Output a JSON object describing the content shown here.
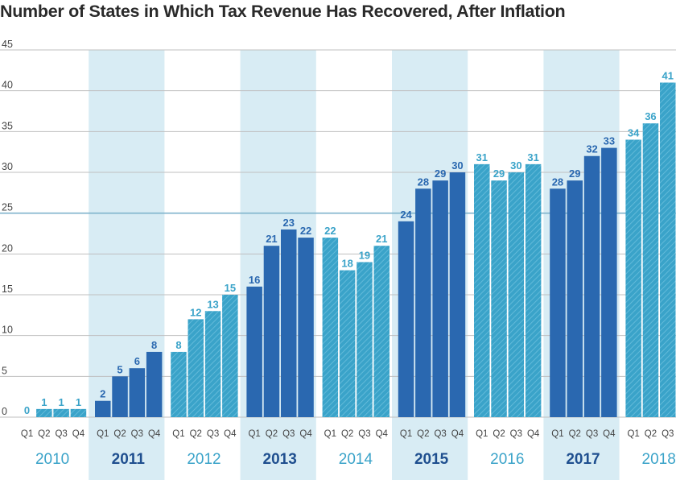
{
  "chart_data": {
    "type": "bar",
    "title": "Number of States in Which Tax Revenue Has Recovered, After Inflation",
    "xlabel": "",
    "ylabel": "",
    "ylim": [
      0,
      45
    ],
    "yticks": [
      0,
      5,
      10,
      15,
      20,
      25,
      30,
      35,
      40,
      45
    ],
    "grid": true,
    "highlight_gridline": 25,
    "colors": {
      "light": "#3aa3c9",
      "dark": "#2a68b0",
      "band": "#d8ecf4",
      "label_light": "#3aa3c9",
      "label_dark": "#2a68b0",
      "year_light": "#3aa3c9",
      "year_dark": "#1f4f8f",
      "grid": "#bfbfbf",
      "grid_highlight": "#7fb3cc",
      "axis_text": "#444444"
    },
    "years": [
      {
        "year": "2010",
        "style": "light",
        "band": false,
        "quarters": [
          "Q1",
          "Q2",
          "Q3",
          "Q4"
        ],
        "values": [
          0,
          1,
          1,
          1
        ]
      },
      {
        "year": "2011",
        "style": "dark",
        "band": true,
        "quarters": [
          "Q1",
          "Q2",
          "Q3",
          "Q4"
        ],
        "values": [
          2,
          5,
          6,
          8
        ]
      },
      {
        "year": "2012",
        "style": "light",
        "band": false,
        "quarters": [
          "Q1",
          "Q2",
          "Q3",
          "Q4"
        ],
        "values": [
          8,
          12,
          13,
          15
        ]
      },
      {
        "year": "2013",
        "style": "dark",
        "band": true,
        "quarters": [
          "Q1",
          "Q2",
          "Q3",
          "Q4"
        ],
        "values": [
          16,
          21,
          23,
          22
        ]
      },
      {
        "year": "2014",
        "style": "light",
        "band": false,
        "quarters": [
          "Q1",
          "Q2",
          "Q3",
          "Q4"
        ],
        "values": [
          22,
          18,
          19,
          21
        ]
      },
      {
        "year": "2015",
        "style": "dark",
        "band": true,
        "quarters": [
          "Q1",
          "Q2",
          "Q3",
          "Q4"
        ],
        "values": [
          24,
          28,
          29,
          30
        ]
      },
      {
        "year": "2016",
        "style": "light",
        "band": false,
        "quarters": [
          "Q1",
          "Q2",
          "Q3",
          "Q4"
        ],
        "values": [
          31,
          29,
          30,
          31
        ]
      },
      {
        "year": "2017",
        "style": "dark",
        "band": true,
        "quarters": [
          "Q1",
          "Q2",
          "Q3",
          "Q4"
        ],
        "values": [
          28,
          29,
          32,
          33
        ]
      },
      {
        "year": "2018",
        "style": "light",
        "band": false,
        "quarters": [
          "Q1",
          "Q2",
          "Q3"
        ],
        "values": [
          34,
          36,
          41
        ]
      }
    ]
  }
}
